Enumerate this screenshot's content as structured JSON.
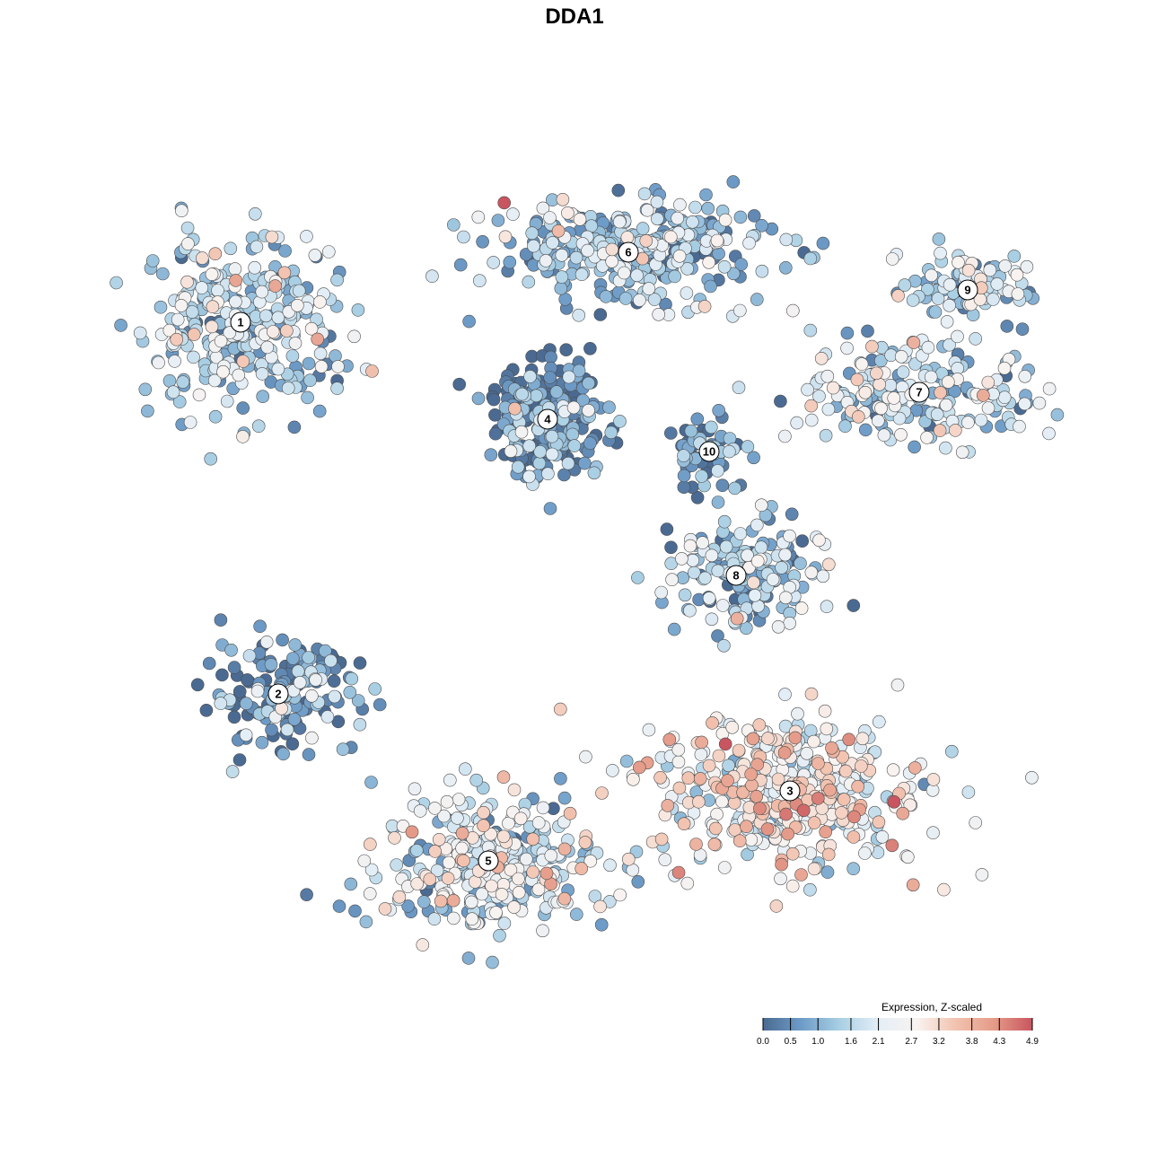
{
  "chart_data": {
    "type": "scatter",
    "title": "DDA1",
    "xlabel": "",
    "ylabel": "",
    "grid": false,
    "axes_visible": false,
    "legend_placement": "bottom-right",
    "colorbar": {
      "title": "Expression, Z-scaled",
      "ticks": [
        "0.0",
        "0.5",
        "1.0",
        "1.6",
        "2.1",
        "2.7",
        "3.2",
        "3.8",
        "4.3",
        "4.9"
      ],
      "range": [
        0.0,
        4.9
      ],
      "colors": [
        "#4a6a92",
        "#6e9cc8",
        "#a9cfe4",
        "#e4eef6",
        "#f8f3f0",
        "#f2c3b0",
        "#e59b89",
        "#c8555f"
      ]
    },
    "clusters": [
      {
        "label": "1",
        "x": -6.2,
        "y": 4.6,
        "mean_expression": 1.5
      },
      {
        "label": "2",
        "x": -5.5,
        "y": -2.3,
        "mean_expression": 0.6
      },
      {
        "label": "3",
        "x": 4.0,
        "y": -4.1,
        "mean_expression": 2.6
      },
      {
        "label": "4",
        "x": -0.5,
        "y": 2.8,
        "mean_expression": 0.5
      },
      {
        "label": "5",
        "x": -1.6,
        "y": -5.4,
        "mean_expression": 1.9
      },
      {
        "label": "6",
        "x": 1.0,
        "y": 5.9,
        "mean_expression": 1.3
      },
      {
        "label": "7",
        "x": 6.4,
        "y": 3.3,
        "mean_expression": 1.8
      },
      {
        "label": "8",
        "x": 3.0,
        "y": -0.1,
        "mean_expression": 1.4
      },
      {
        "label": "9",
        "x": 7.3,
        "y": 5.2,
        "mean_expression": 1.6
      },
      {
        "label": "10",
        "x": 2.5,
        "y": 2.2,
        "mean_expression": 0.6
      }
    ]
  }
}
